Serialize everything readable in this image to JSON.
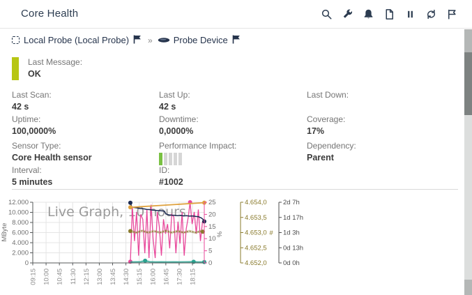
{
  "header": {
    "title": "Core Health",
    "icons": [
      "search",
      "wrench",
      "bell",
      "document",
      "pause",
      "refresh",
      "flag"
    ]
  },
  "breadcrumb": {
    "probe_label": "Local Probe (Local Probe)",
    "separator": "»",
    "device_label": "Probe Device"
  },
  "status": {
    "label": "Last Message:",
    "value": "OK",
    "bar_color": "#b7c614"
  },
  "fields": [
    {
      "label": "Last Scan:",
      "value": "42 s"
    },
    {
      "label": "Last Up:",
      "value": "42 s"
    },
    {
      "label": "Last Down:",
      "value": ""
    },
    {
      "label": "Uptime:",
      "value": "100,0000%"
    },
    {
      "label": "Downtime:",
      "value": "0,0000%"
    },
    {
      "label": "Coverage:",
      "value": "17%"
    },
    {
      "label": "Sensor Type:",
      "value": "Core Health sensor"
    },
    {
      "label": "Performance Impact:",
      "value": "",
      "type": "impact",
      "impact_level": 1,
      "impact_max": 5
    },
    {
      "label": "Dependency:",
      "value": "Parent"
    },
    {
      "label": "Interval:",
      "value": "5 minutes"
    },
    {
      "label": "ID:",
      "value": "#1002"
    }
  ],
  "colors": {
    "accent_dark": "#2c3c50",
    "label_gray": "#757575",
    "status_ok_bar": "#b7c614",
    "impact_on": "#7ac143",
    "impact_off": "#d6d6d6"
  },
  "chart_data": {
    "type": "line",
    "title": "Live Graph, 10 hours",
    "x_unit": "minutes_since_midnight",
    "x_axis": {
      "range_minutes": [
        555,
        1135
      ],
      "tick_minutes": [
        555,
        600,
        645,
        690,
        735,
        780,
        825,
        870,
        915,
        960,
        1005,
        1050,
        1095
      ],
      "tick_labels": [
        "09:15",
        "10:00",
        "10:45",
        "11:30",
        "12:15",
        "13:00",
        "13:45",
        "14:30",
        "15:15",
        "16:00",
        "16:45",
        "17:30",
        "18:15"
      ]
    },
    "axes": {
      "mbyte": {
        "unit": "MByte",
        "min": 0,
        "max": 12000,
        "side": "left",
        "tick_labels_top_to_bottom": [
          "12.000",
          "10.000",
          "8.000",
          "6.000",
          "4.000",
          "2.000",
          "0"
        ],
        "label_color": "#6e6e6e"
      },
      "percent": {
        "unit": "%",
        "min": 0,
        "max": 25,
        "side": "right",
        "tick_labels_top_to_bottom": [
          "25",
          "20",
          "15",
          "10",
          "5",
          "0"
        ],
        "axis_color": "#e8489b",
        "label_color": "#6d6d6d"
      },
      "count": {
        "unit": "#",
        "min": 4652,
        "max": 4654,
        "side": "right",
        "tick_labels_top_to_bottom": [
          "4.654,0",
          "4.653,5",
          "4.653,0",
          "4.652,5",
          "4.652,0"
        ],
        "axis_color": "#8a7b2d",
        "label_color": "#8a7b2d"
      },
      "duration": {
        "unit": "",
        "min": 0,
        "max": 55,
        "side": "right",
        "tick_labels_top_to_bottom": [
          "2d 7h",
          "1d 17h",
          "1d 3h",
          "0d 13h",
          "0d 0h"
        ],
        "axis_color": "#4c4c4c",
        "label_color": "#4c4c4c"
      }
    },
    "grid": true,
    "series": [
      {
        "name": "pink-line",
        "axis": "percent",
        "color": "#e8489b",
        "width": 1.3,
        "points": [
          [
            885,
            0.5
          ],
          [
            892,
            23
          ],
          [
            899,
            9
          ],
          [
            906,
            21
          ],
          [
            913,
            3
          ],
          [
            920,
            20
          ],
          [
            927,
            18
          ],
          [
            934,
            4
          ],
          [
            941,
            22
          ],
          [
            948,
            2
          ],
          [
            955,
            24
          ],
          [
            962,
            10
          ],
          [
            969,
            2
          ],
          [
            976,
            21
          ],
          [
            983,
            15
          ],
          [
            990,
            3
          ],
          [
            997,
            18
          ],
          [
            1004,
            12
          ],
          [
            1011,
            16
          ],
          [
            1018,
            6
          ],
          [
            1025,
            20
          ],
          [
            1032,
            19
          ],
          [
            1039,
            4
          ],
          [
            1046,
            17
          ],
          [
            1053,
            8
          ],
          [
            1060,
            21
          ],
          [
            1067,
            3
          ],
          [
            1074,
            14
          ],
          [
            1081,
            19
          ],
          [
            1087,
            25
          ],
          [
            1094,
            16
          ],
          [
            1101,
            21
          ],
          [
            1108,
            12
          ],
          [
            1115,
            22
          ],
          [
            1122,
            9
          ],
          [
            1129,
            17
          ],
          [
            1135,
            18
          ]
        ],
        "markers": [
          [
            885,
            0.5
          ],
          [
            1087,
            25
          ]
        ]
      },
      {
        "name": "navy-line",
        "axis": "mbyte",
        "color": "#1c2a52",
        "width": 1.5,
        "points": [
          [
            885,
            11900
          ],
          [
            890,
            11050
          ],
          [
            900,
            10950
          ],
          [
            910,
            10850
          ],
          [
            920,
            10750
          ],
          [
            930,
            10700
          ],
          [
            940,
            10600
          ],
          [
            950,
            10550
          ],
          [
            960,
            10450
          ],
          [
            970,
            10400
          ],
          [
            980,
            10350
          ],
          [
            990,
            10300
          ],
          [
            1000,
            10250
          ],
          [
            1005,
            9700
          ],
          [
            1015,
            9500
          ],
          [
            1025,
            9450
          ],
          [
            1035,
            9400
          ],
          [
            1045,
            9350
          ],
          [
            1055,
            9400
          ],
          [
            1065,
            9300
          ],
          [
            1075,
            9350
          ],
          [
            1085,
            9250
          ],
          [
            1095,
            9300
          ],
          [
            1105,
            9200
          ],
          [
            1115,
            9150
          ],
          [
            1125,
            8900
          ],
          [
            1131,
            8600
          ],
          [
            1135,
            8200
          ]
        ],
        "markers": [
          [
            885,
            11900
          ],
          [
            1135,
            8200
          ]
        ]
      },
      {
        "name": "orange-line",
        "axis": "duration",
        "color": "#dfa23f",
        "width": 1.8,
        "points": [
          [
            885,
            50.4
          ],
          [
            1135,
            54.6
          ]
        ],
        "markers": [
          [
            885,
            50.4
          ],
          [
            1135,
            54.6
          ]
        ]
      },
      {
        "name": "olive-line",
        "axis": "count",
        "color": "#8a7b2d",
        "width": 1.4,
        "dashed": true,
        "band": true,
        "points": [
          [
            885,
            4653.05
          ],
          [
            905,
            4653.0
          ],
          [
            925,
            4653.06
          ],
          [
            945,
            4653.0
          ],
          [
            965,
            4653.05
          ],
          [
            985,
            4653.0
          ],
          [
            1005,
            4653.06
          ],
          [
            1025,
            4653.0
          ],
          [
            1045,
            4653.05
          ],
          [
            1065,
            4653.0
          ],
          [
            1085,
            4653.05
          ],
          [
            1105,
            4653.0
          ],
          [
            1125,
            4653.05
          ],
          [
            1135,
            4653.02
          ]
        ],
        "markers": [
          [
            885,
            4653.05
          ],
          [
            1130,
            4653.03
          ]
        ]
      },
      {
        "name": "teal-line",
        "axis": "mbyte",
        "color": "#2aa18f",
        "width": 1.2,
        "band": true,
        "points": [
          [
            885,
            160
          ],
          [
            900,
            180
          ],
          [
            920,
            200
          ],
          [
            935,
            430
          ],
          [
            950,
            200
          ],
          [
            970,
            170
          ],
          [
            990,
            180
          ],
          [
            1010,
            160
          ],
          [
            1030,
            175
          ],
          [
            1050,
            160
          ],
          [
            1070,
            180
          ],
          [
            1085,
            190
          ],
          [
            1099,
            220
          ],
          [
            1112,
            170
          ],
          [
            1125,
            160
          ],
          [
            1135,
            175
          ]
        ],
        "markers": [
          [
            935,
            430
          ],
          [
            1099,
            220
          ],
          [
            1135,
            175
          ]
        ]
      }
    ]
  }
}
